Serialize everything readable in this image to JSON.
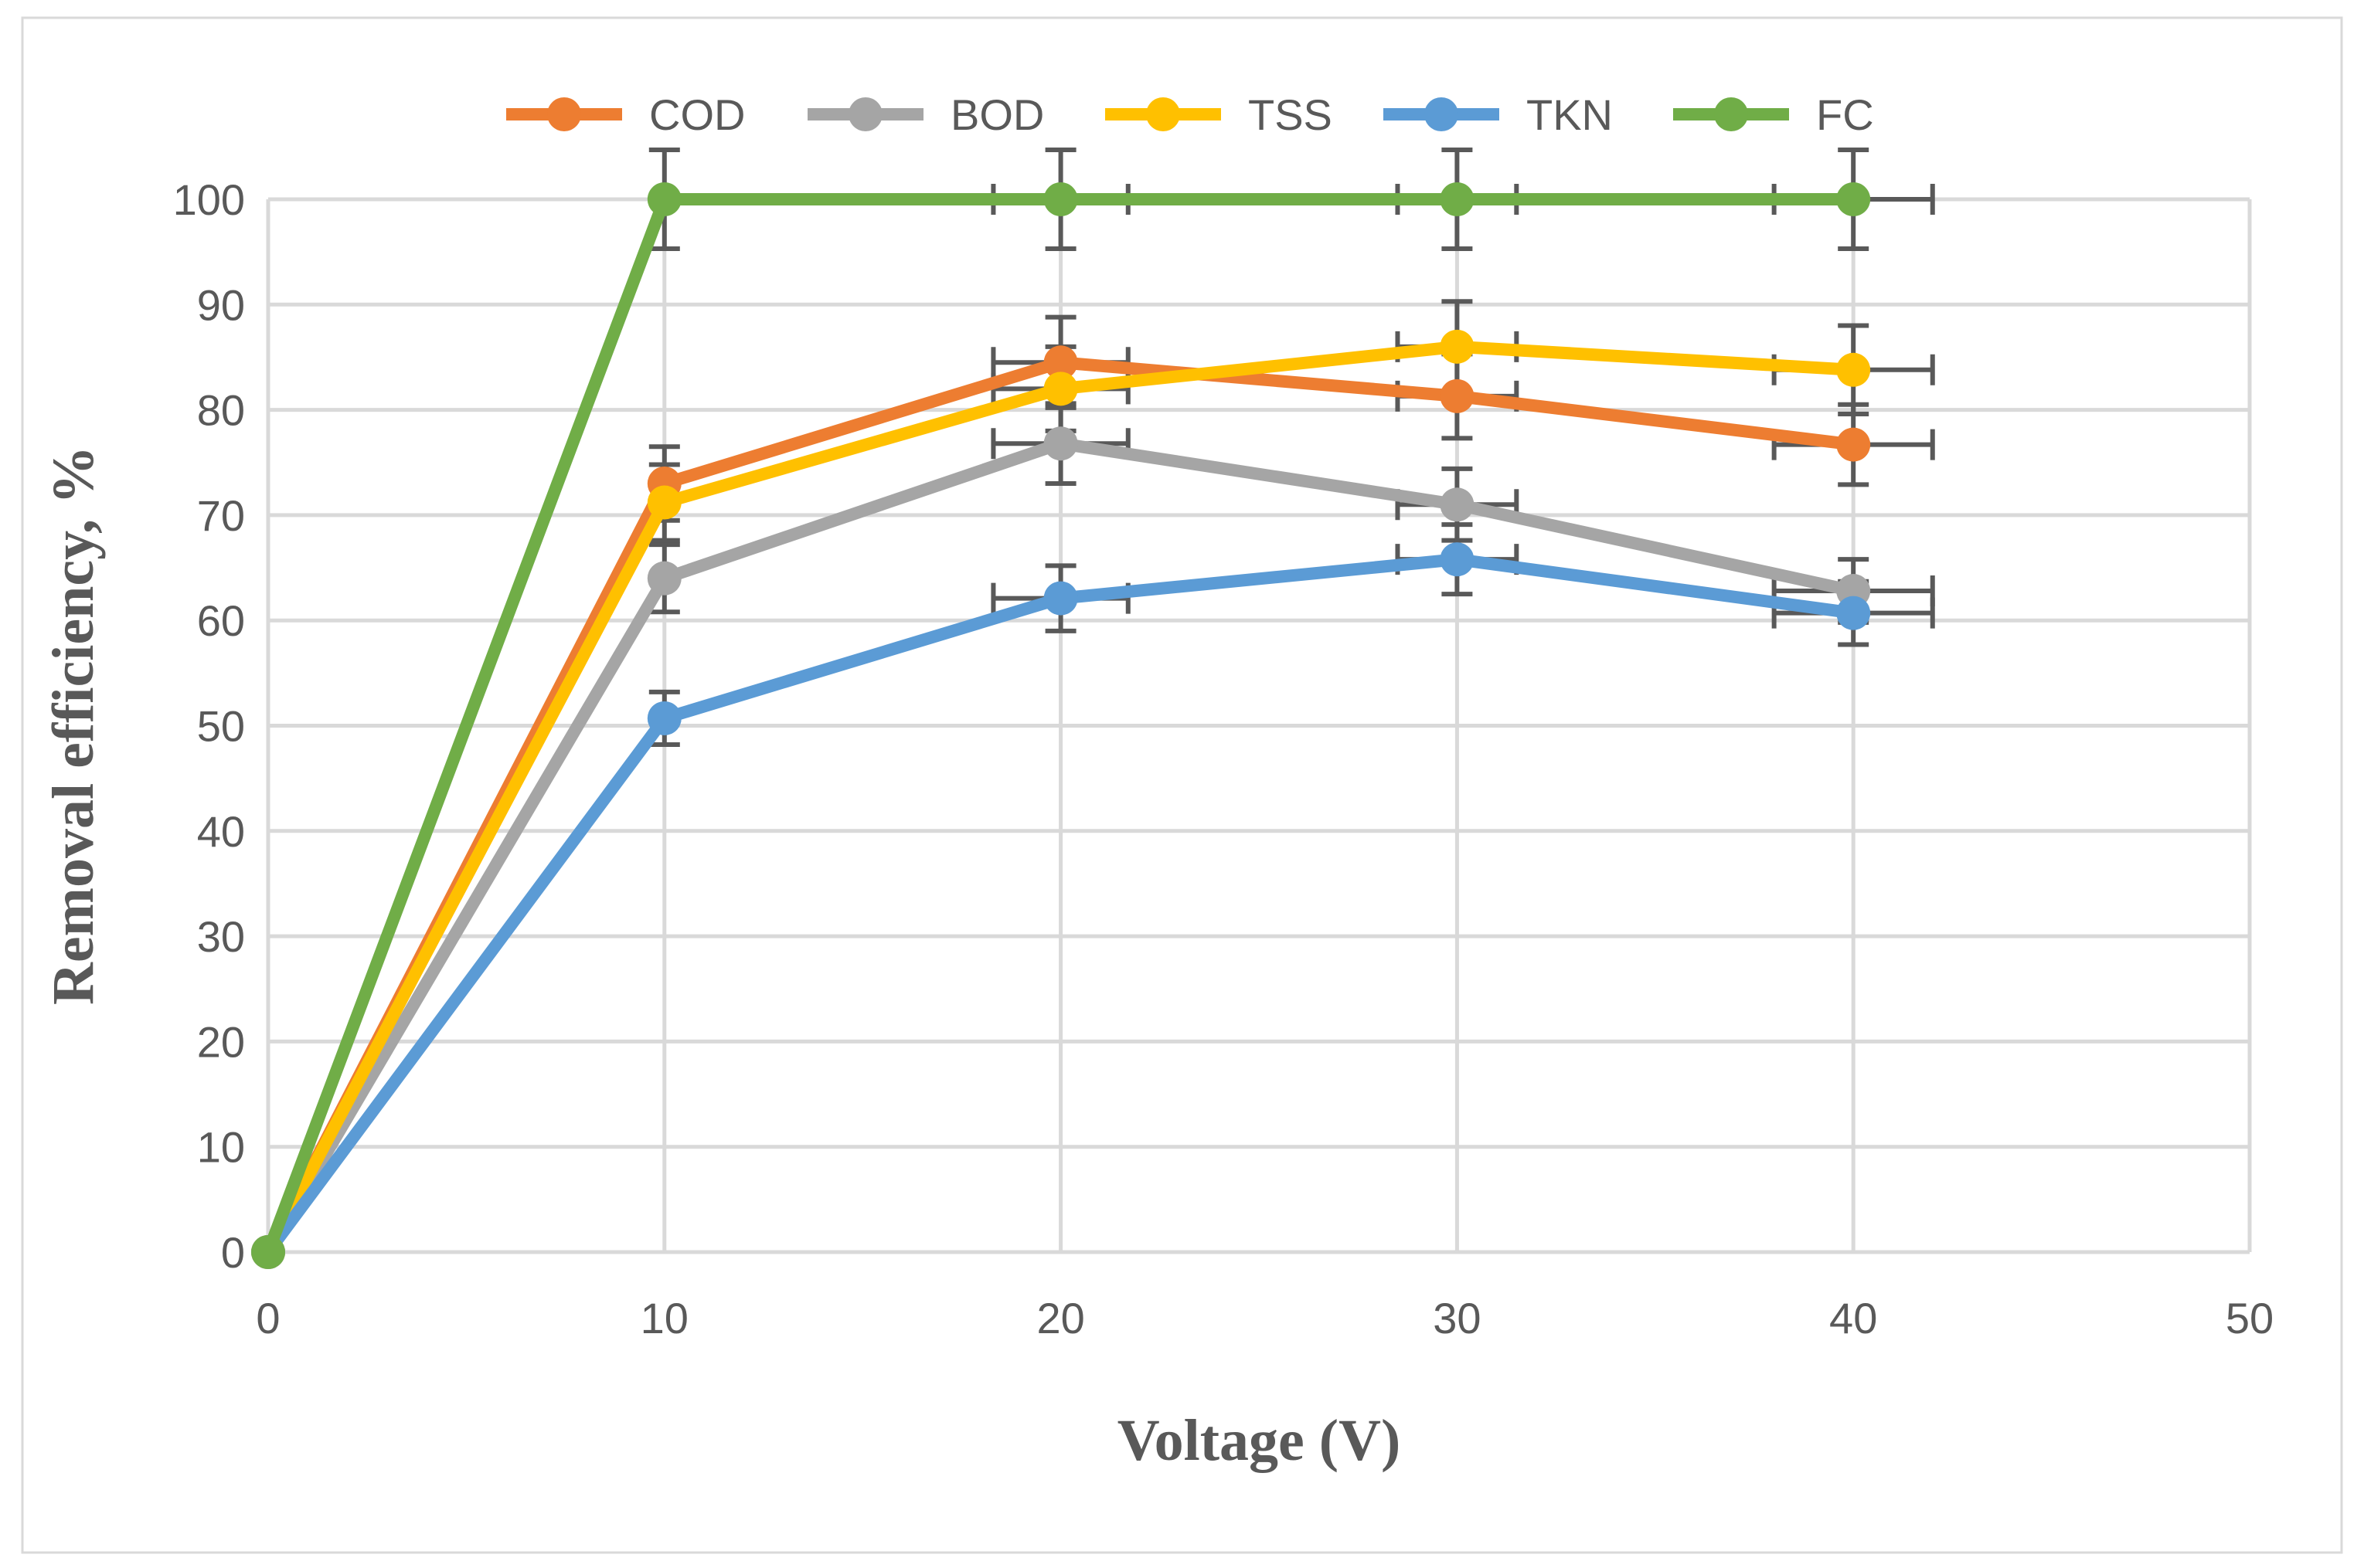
{
  "chart_data": {
    "type": "line",
    "title": "",
    "xlabel": "Voltage (V)",
    "ylabel": "Removal efficiency, %",
    "xlim": [
      0,
      50
    ],
    "ylim": [
      0,
      100
    ],
    "xticks": [
      "0",
      "10",
      "20",
      "30",
      "40",
      "50"
    ],
    "yticks": [
      "0",
      "10",
      "20",
      "30",
      "40",
      "50",
      "60",
      "70",
      "80",
      "90",
      "100"
    ],
    "grid": true,
    "legend_position": "top",
    "x": [
      0,
      10,
      20,
      30,
      40
    ],
    "series": [
      {
        "name": "COD",
        "color": "#ED7D31",
        "values": [
          0,
          73,
          84.5,
          81.3,
          76.7
        ],
        "yerr": [
          0,
          3.5,
          4.3,
          4.0,
          3.8
        ],
        "xerr": [
          0,
          0,
          1.7,
          1.5,
          2.0
        ]
      },
      {
        "name": "BOD",
        "color": "#A5A5A5",
        "values": [
          0,
          64,
          76.8,
          71,
          62.8
        ],
        "yerr": [
          0,
          3.2,
          3.8,
          3.4,
          3.0
        ],
        "xerr": [
          0,
          0,
          1.7,
          1.5,
          2.0
        ]
      },
      {
        "name": "TSS",
        "color": "#FFC000",
        "values": [
          0,
          71.2,
          82,
          86,
          83.8
        ],
        "yerr": [
          0,
          3.6,
          4.0,
          4.3,
          4.2
        ],
        "xerr": [
          0,
          0,
          1.7,
          1.5,
          2.0
        ]
      },
      {
        "name": "TKN",
        "color": "#5B9BD5",
        "values": [
          0,
          50.7,
          62.1,
          65.8,
          60.7
        ],
        "yerr": [
          0,
          2.5,
          3.1,
          3.3,
          3.0
        ],
        "xerr": [
          0,
          0,
          1.7,
          1.5,
          2.0
        ]
      },
      {
        "name": "FC",
        "color": "#70AD47",
        "values": [
          0,
          100,
          100,
          100,
          100
        ],
        "yerr": [
          0,
          4.7,
          4.7,
          4.7,
          4.7
        ],
        "xerr": [
          0,
          0,
          1.7,
          1.5,
          2.0
        ]
      }
    ]
  }
}
